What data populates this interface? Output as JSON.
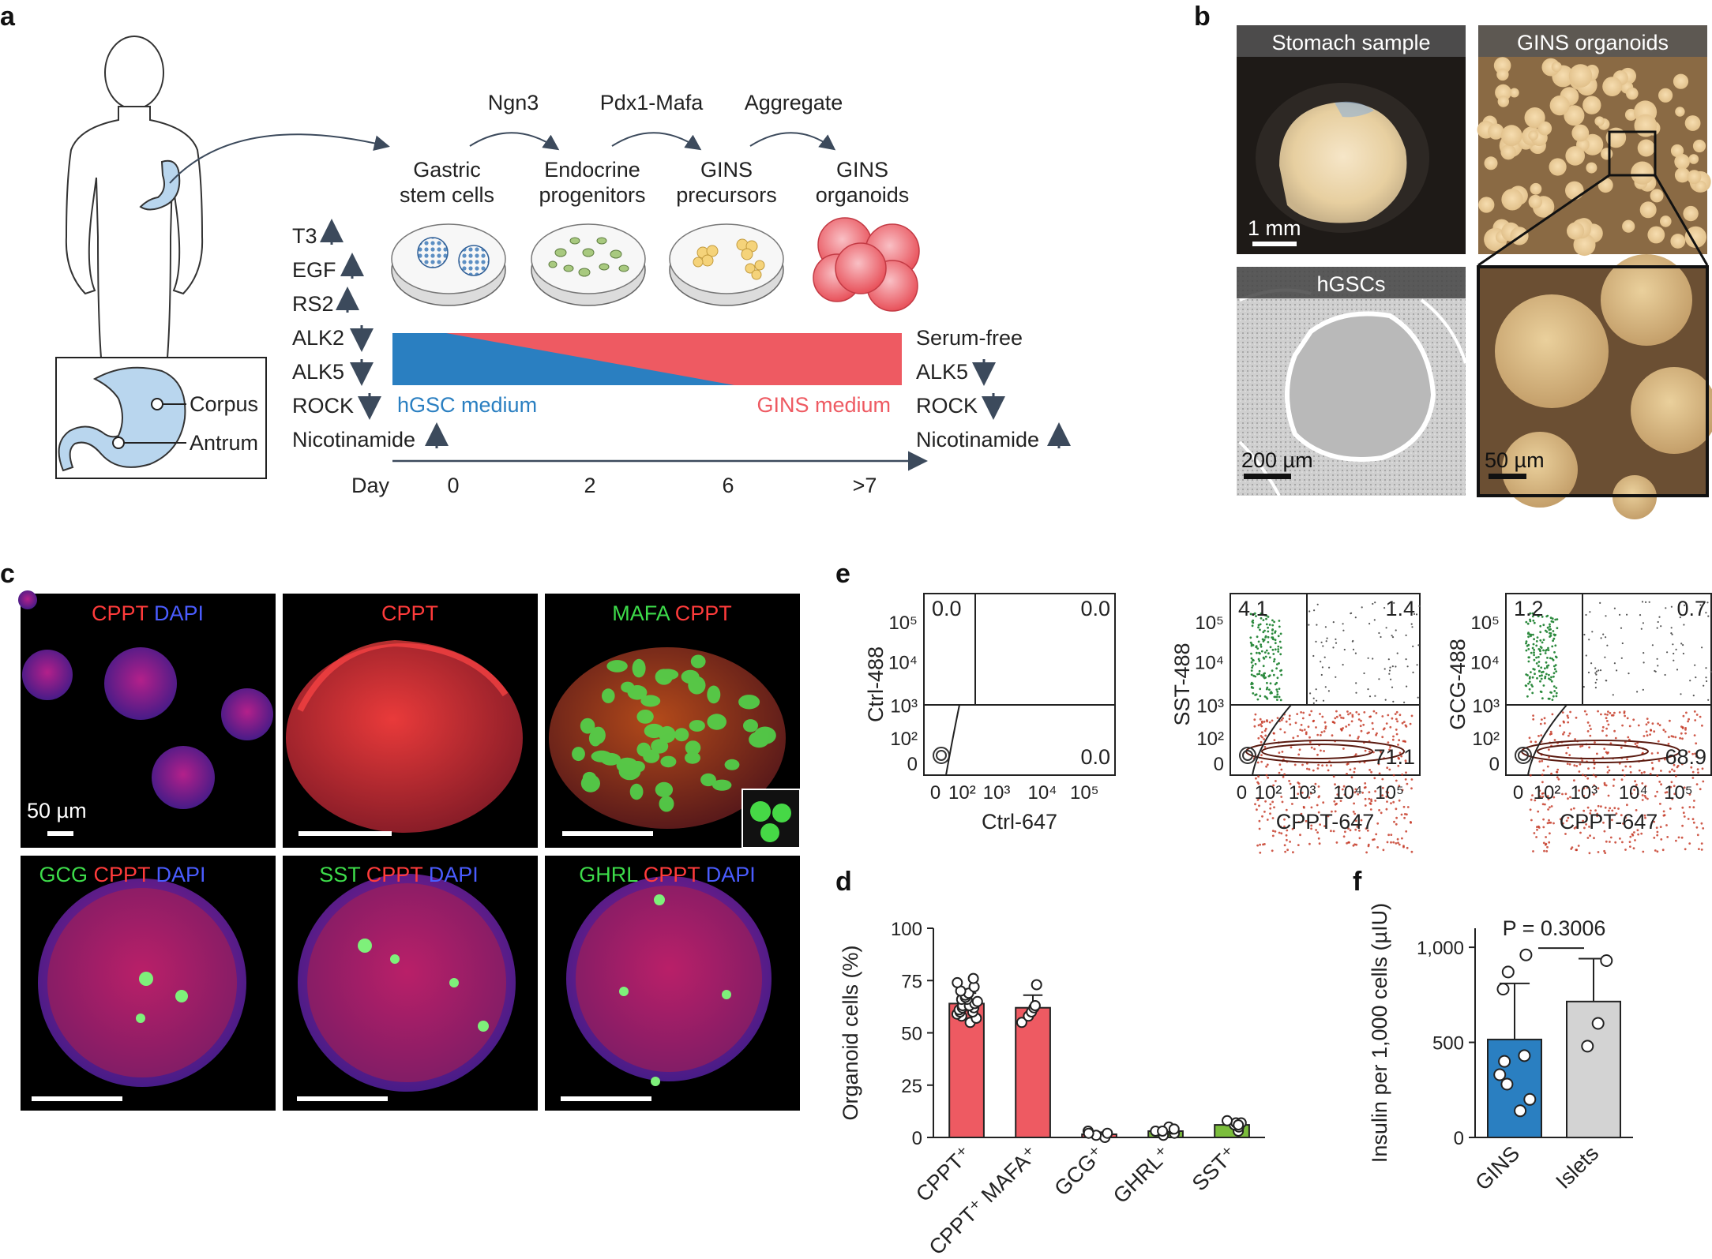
{
  "panels": {
    "a": {
      "letter": "a",
      "stomach_labels": {
        "corpus": "Corpus",
        "antrum": "Antrum"
      },
      "steps": [
        "Ngn3",
        "Pdx1-Mafa",
        "Aggregate"
      ],
      "stages": [
        {
          "line1": "Gastric",
          "line2": "stem cells"
        },
        {
          "line1": "Endocrine",
          "line2": "progenitors"
        },
        {
          "line1": "GINS",
          "line2": "precursors"
        },
        {
          "line1": "GINS",
          "line2": "organoids"
        }
      ],
      "factors_left": [
        "T3",
        "EGF",
        "RS2",
        "ALK2",
        "ALK5",
        "ROCK",
        "Nicotinamide"
      ],
      "factors_right": [
        "Serum-free",
        "ALK5",
        "ROCK",
        "Nicotinamide"
      ],
      "medium_left": "hGSC medium",
      "medium_right": "GINS medium",
      "day_label": "Day",
      "days": [
        "0",
        "2",
        "6",
        ">7"
      ],
      "colors": {
        "hgsc": "#2a7fc1",
        "gins": "#ee5a62",
        "arrow": "#3c4a5c"
      }
    },
    "b": {
      "letter": "b",
      "tiles": [
        "Stomach sample",
        "GINS organoids",
        "hGSCs",
        ""
      ],
      "scale_bars": [
        "1 mm",
        "200 µm",
        "50 µm"
      ]
    },
    "c": {
      "letter": "c",
      "tiles": [
        {
          "parts": [
            {
              "text": "CPPT",
              "color": "#ff3b3b"
            },
            {
              "text": " DAPI",
              "color": "#4a5cff"
            }
          ]
        },
        {
          "parts": [
            {
              "text": "CPPT",
              "color": "#ff3b3b"
            }
          ]
        },
        {
          "parts": [
            {
              "text": "MAFA",
              "color": "#3ddc4a"
            },
            {
              "text": " CPPT",
              "color": "#ff3b3b"
            }
          ]
        },
        {
          "parts": [
            {
              "text": "GCG",
              "color": "#3ddc4a"
            },
            {
              "text": " CPPT",
              "color": "#ff3b3b"
            },
            {
              "text": " DAPI",
              "color": "#4a5cff"
            }
          ]
        },
        {
          "parts": [
            {
              "text": "SST",
              "color": "#3ddc4a"
            },
            {
              "text": " CPPT",
              "color": "#ff3b3b"
            },
            {
              "text": " DAPI",
              "color": "#4a5cff"
            }
          ]
        },
        {
          "parts": [
            {
              "text": "GHRL",
              "color": "#3ddc4a"
            },
            {
              "text": " CPPT",
              "color": "#ff3b3b"
            },
            {
              "text": " DAPI",
              "color": "#4a5cff"
            }
          ]
        }
      ],
      "scale_label": "50 µm"
    },
    "e": {
      "letter": "e",
      "ticks": [
        "0",
        "10²",
        "10³",
        "10⁴",
        "10⁵"
      ],
      "plots": [
        {
          "ylabel": "Ctrl-488",
          "xlabel": "Ctrl-647",
          "q_tl": "0.0",
          "q_tr": "0.0",
          "q_br": "0.0"
        },
        {
          "ylabel": "SST-488",
          "xlabel": "CPPT-647",
          "q_tl": "4.1",
          "q_tr": "1.4",
          "q_br": "71.1"
        },
        {
          "ylabel": "GCG-488",
          "xlabel": "CPPT-647",
          "q_tl": "1.2",
          "q_tr": "0.7",
          "q_br": "68.9"
        }
      ]
    }
  },
  "chart_data": [
    {
      "panel": "d",
      "type": "bar",
      "categories": [
        "CPPT⁺",
        "CPPT⁺ MAFA⁺",
        "GCG⁺",
        "GHRL⁺",
        "SST⁺"
      ],
      "values": [
        64,
        62,
        1.5,
        3,
        6
      ],
      "errors": [
        5,
        6,
        1,
        1.5,
        2
      ],
      "bar_colors": [
        "#ee5a62",
        "#ee5a62",
        "#ee5a62",
        "#7bbd3c",
        "#7bbd3c"
      ],
      "points": [
        [
          55,
          57,
          58,
          59,
          60,
          60,
          61,
          62,
          62,
          63,
          63,
          64,
          65,
          66,
          66,
          67,
          68,
          69,
          70,
          72,
          74,
          76
        ],
        [
          55,
          58,
          60,
          62,
          63,
          73
        ],
        [
          0,
          1,
          2,
          3,
          2
        ],
        [
          1,
          2,
          3,
          4,
          5,
          4,
          3
        ],
        [
          3,
          5,
          6,
          7,
          8,
          7,
          6
        ]
      ],
      "ylabel": "Organoid cells (%)",
      "yticks": [
        "0",
        "25",
        "50",
        "75",
        "100"
      ],
      "ylim": [
        0,
        100
      ],
      "title": "d"
    },
    {
      "panel": "f",
      "type": "bar",
      "categories": [
        "GINS",
        "Islets"
      ],
      "values": [
        515,
        715
      ],
      "errors": [
        295,
        225
      ],
      "bar_colors": [
        "#2a7fc1",
        "#d3d3d3"
      ],
      "points": [
        [
          140,
          200,
          280,
          330,
          400,
          430,
          780,
          870,
          960
        ],
        [
          480,
          600,
          930
        ]
      ],
      "ylabel": "Insulin per 1,000 cells (µIU)",
      "yticks": [
        "0",
        "500",
        "1,000"
      ],
      "ylim": [
        0,
        1100
      ],
      "annotation": "P = 0.3006",
      "title": "f"
    }
  ]
}
